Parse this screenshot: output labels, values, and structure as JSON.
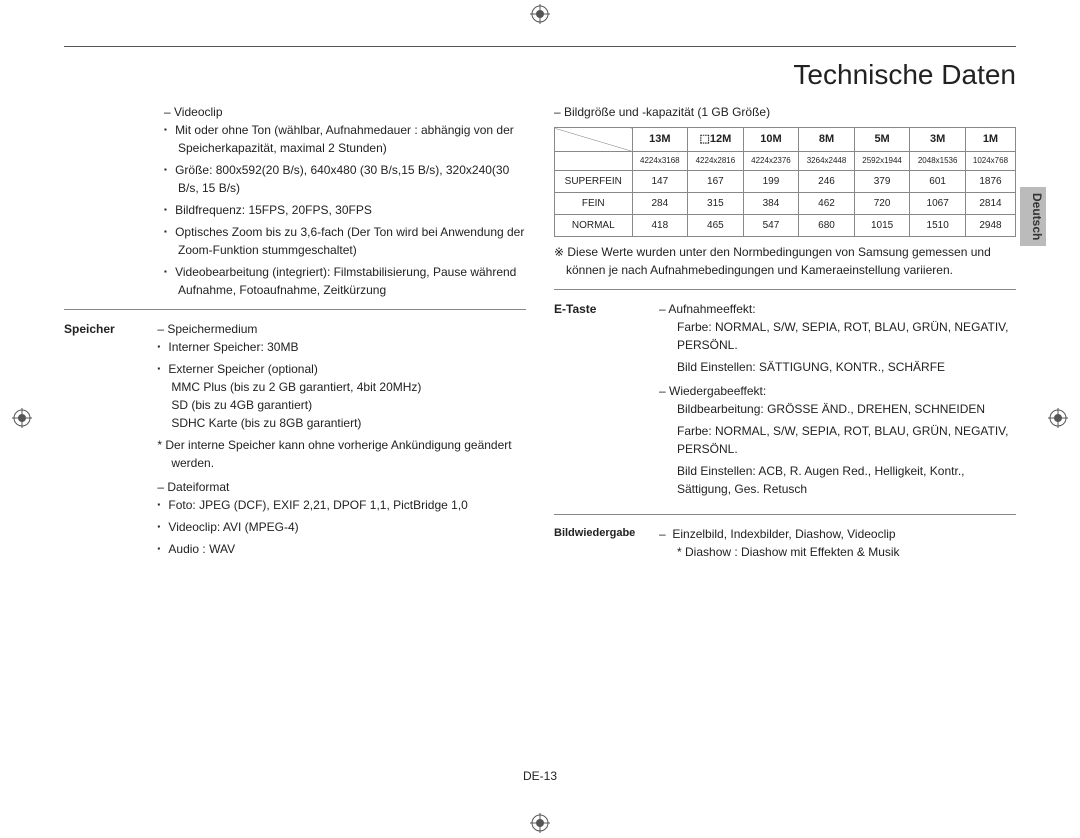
{
  "page": {
    "title": "Technische Daten",
    "footer": "DE-13",
    "side_tab": "Deutsch"
  },
  "left": {
    "videoclip": {
      "heading": "Videoclip",
      "items": [
        "Mit oder ohne Ton (wählbar, Aufnahmedauer : abhängig von der Speicherkapazität, maximal 2 Stunden)",
        "Größe: 800x592(20 B/s), 640x480 (30 B/s,15 B/s), 320x240(30 B/s, 15 B/s)",
        "Bildfrequenz: 15FPS, 20FPS, 30FPS",
        "Optisches Zoom bis zu 3,6-fach (Der Ton wird bei Anwendung der Zoom-Funktion stummgeschaltet)",
        "Videobearbeitung (integriert): Filmstabilisierung, Pause während Aufnahme, Fotoaufnahme, Zeitkürzung"
      ]
    },
    "speicher": {
      "label": "Speicher",
      "medium": {
        "heading": "Speichermedium",
        "items": [
          "Interner Speicher: 30MB",
          "Externer Speicher (optional)\nMMC Plus (bis zu 2 GB garantiert, 4bit 20MHz)\nSD (bis zu 4GB garantiert)\nSDHC Karte (bis zu 8GB garantiert)"
        ],
        "note": "Der interne Speicher kann ohne vorherige Ankündigung geändert werden."
      },
      "format": {
        "heading": "Dateiformat",
        "items": [
          "Foto: JPEG (DCF), EXIF 2,21, DPOF 1,1, PictBridge 1,0",
          "Videoclip: AVI (MPEG-4)",
          "Audio : WAV"
        ]
      }
    }
  },
  "right": {
    "capacity": {
      "heading": "Bildgröße und -kapazität (1 GB Größe)",
      "headers": [
        "13M",
        "⬚12M",
        "10M",
        "8M",
        "5M",
        "3M",
        "1M"
      ],
      "res_row": [
        "4224x3168",
        "4224x2816",
        "4224x2376",
        "3264x2448",
        "2592x1944",
        "2048x1536",
        "1024x768"
      ],
      "rows": [
        {
          "label": "SUPERFEIN",
          "vals": [
            "147",
            "167",
            "199",
            "246",
            "379",
            "601",
            "1876"
          ]
        },
        {
          "label": "FEIN",
          "vals": [
            "284",
            "315",
            "384",
            "462",
            "720",
            "1067",
            "2814"
          ]
        },
        {
          "label": "NORMAL",
          "vals": [
            "418",
            "465",
            "547",
            "680",
            "1015",
            "1510",
            "2948"
          ]
        }
      ],
      "note": "Diese Werte wurden unter den Normbedingungen von Samsung gemessen und können je nach Aufnahmebedingungen und Kameraeinstellung variieren."
    },
    "etaste": {
      "label": "E-Taste",
      "aufnahme": {
        "heading": "Aufnahmeeffekt:",
        "lines": [
          "Farbe: NORMAL, S/W, SEPIA, ROT, BLAU, GRÜN, NEGATIV, PERSÖNL.",
          "Bild Einstellen: SÄTTIGUNG, KONTR., SCHÄRFE"
        ]
      },
      "wiedergabe": {
        "heading": "Wiedergabeeffekt:",
        "lines": [
          "Bildbearbeitung: GRÖSSE ÄND., DREHEN, SCHNEIDEN",
          "Farbe: NORMAL, S/W, SEPIA, ROT, BLAU, GRÜN, NEGATIV, PERSÖNL.",
          "Bild Einstellen: ACB, R. Augen Red., Helligkeit, Kontr., Sättigung, Ges. Retusch"
        ]
      }
    },
    "bildwiedergabe": {
      "label": "Bildwiedergabe",
      "main": "Einzelbild, Indexbilder, Diashow, Videoclip",
      "note": "Diashow : Diashow mit Effekten & Musik"
    }
  }
}
